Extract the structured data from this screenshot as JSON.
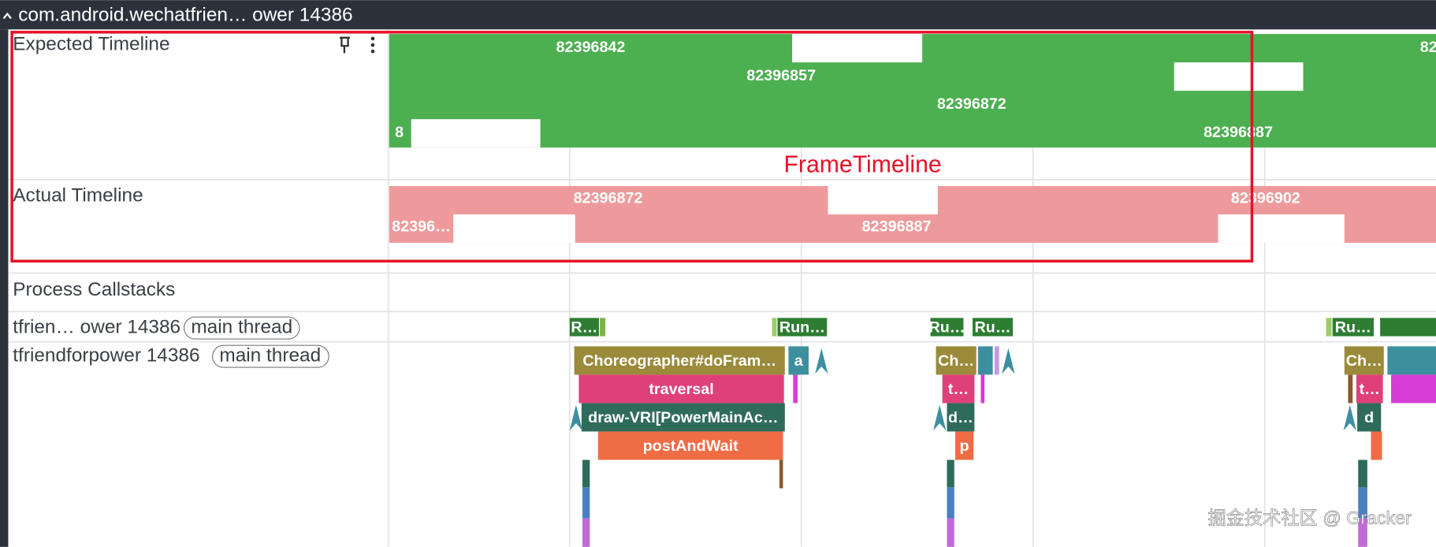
{
  "header": {
    "title": "com.android.wechatfrien… ower 14386"
  },
  "tracks": {
    "expected": {
      "label": "Expected Timeline",
      "slices": [
        "82396842",
        "82396857",
        "82396872",
        "82396887",
        "8",
        "82"
      ]
    },
    "actual": {
      "label": "Actual Timeline",
      "slices": [
        "82396872",
        "82396902",
        "82396…",
        "82396887"
      ]
    },
    "callstacks": {
      "label": "Process Callstacks"
    },
    "thread1": {
      "label": "tfrien… ower 14386",
      "tag": "main thread",
      "slices": [
        "R…",
        "Run…",
        "Ru…",
        "Ru…",
        "Ru…"
      ]
    },
    "thread2": {
      "label": "tfriendforpower 14386",
      "tag": "main thread",
      "slices": [
        "Choreographer#doFram…",
        "a",
        "traversal",
        "draw-VRI[PowerMainAc…",
        "postAndWait",
        "Ch…",
        "t…",
        "d…",
        "p",
        "Ch…",
        "t…",
        "d"
      ]
    }
  },
  "annotation": "FrameTimeline",
  "watermark": "掘金技术社区 @ Gracker"
}
